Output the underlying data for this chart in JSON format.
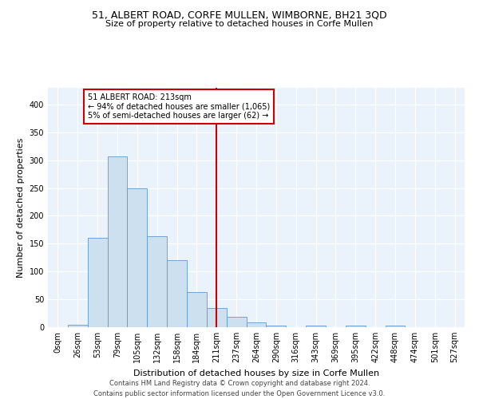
{
  "title": "51, ALBERT ROAD, CORFE MULLEN, WIMBORNE, BH21 3QD",
  "subtitle": "Size of property relative to detached houses in Corfe Mullen",
  "xlabel": "Distribution of detached houses by size in Corfe Mullen",
  "ylabel": "Number of detached properties",
  "bins": [
    "0sqm",
    "26sqm",
    "53sqm",
    "79sqm",
    "105sqm",
    "132sqm",
    "158sqm",
    "184sqm",
    "211sqm",
    "237sqm",
    "264sqm",
    "290sqm",
    "316sqm",
    "343sqm",
    "369sqm",
    "395sqm",
    "422sqm",
    "448sqm",
    "474sqm",
    "501sqm",
    "527sqm"
  ],
  "values": [
    0,
    4,
    161,
    307,
    250,
    163,
    120,
    63,
    35,
    19,
    9,
    3,
    0,
    3,
    0,
    3,
    0,
    3,
    0,
    0,
    0
  ],
  "bar_color": "#cce0f0",
  "bar_edgecolor": "#5b9bd5",
  "vline_x": 8,
  "vline_color": "#cc0000",
  "annotation_line1": "51 ALBERT ROAD: 213sqm",
  "annotation_line2": "← 94% of detached houses are smaller (1,065)",
  "annotation_line3": "5% of semi-detached houses are larger (62) →",
  "ylim": [
    0,
    430
  ],
  "yticks": [
    0,
    50,
    100,
    150,
    200,
    250,
    300,
    350,
    400
  ],
  "background_color": "#eaf3fb",
  "grid_color": "#ffffff",
  "footer1": "Contains HM Land Registry data © Crown copyright and database right 2024.",
  "footer2": "Contains public sector information licensed under the Open Government Licence v3.0.",
  "title_fontsize": 9,
  "subtitle_fontsize": 8,
  "axis_label_fontsize": 8,
  "tick_fontsize": 7,
  "annotation_fontsize": 7,
  "footer_fontsize": 6
}
